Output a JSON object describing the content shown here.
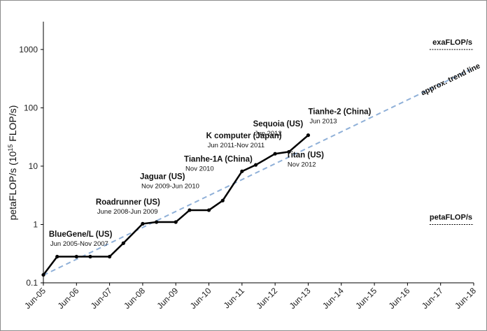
{
  "chart_data": {
    "type": "line",
    "title": "",
    "xlabel": "",
    "ylabel": "petaFLOP/s (10<sup>15</sup> FLOP/s)",
    "ylabel_parts": [
      "petaFLOP/s (10",
      "15",
      " FLOP/s)"
    ],
    "y_scale": "log",
    "ylim": [
      0.1,
      3000
    ],
    "y_ticks": [
      0.1,
      1,
      10,
      100,
      1000
    ],
    "y_tick_labels": [
      "0.1",
      "1",
      "10",
      "100",
      "1000"
    ],
    "x_ticks": [
      "2005-06",
      "2006-06",
      "2007-06",
      "2008-06",
      "2009-06",
      "2010-06",
      "2011-06",
      "2012-06",
      "2013-06",
      "2014-06",
      "2015-06",
      "2016-06",
      "2017-06",
      "2018-06"
    ],
    "x_tick_labels": [
      "Jun-05",
      "Jun-06",
      "Jun-07",
      "Jun-08",
      "Jun-09",
      "Jun-10",
      "Jun-11",
      "Jun-12",
      "Jun-13",
      "Jun-14",
      "Jun-15",
      "Jun-16",
      "Jun-17",
      "Jun-18"
    ],
    "xlim": [
      "2005-06",
      "2018-06"
    ],
    "grid": false,
    "series": [
      {
        "name": "",
        "color": "#000000",
        "points": [
          {
            "x": "2005-06",
            "y": 0.137
          },
          {
            "x": "2005-11",
            "y": 0.281
          },
          {
            "x": "2006-06",
            "y": 0.281
          },
          {
            "x": "2006-11",
            "y": 0.281
          },
          {
            "x": "2007-06",
            "y": 0.281
          },
          {
            "x": "2007-11",
            "y": 0.478
          },
          {
            "x": "2008-06",
            "y": 1.03
          },
          {
            "x": "2008-11",
            "y": 1.1
          },
          {
            "x": "2009-06",
            "y": 1.1
          },
          {
            "x": "2009-11",
            "y": 1.76
          },
          {
            "x": "2010-06",
            "y": 1.76
          },
          {
            "x": "2010-11",
            "y": 2.57
          },
          {
            "x": "2011-06",
            "y": 8.16
          },
          {
            "x": "2011-11",
            "y": 10.5
          },
          {
            "x": "2012-06",
            "y": 16.3
          },
          {
            "x": "2012-11",
            "y": 17.6
          },
          {
            "x": "2013-06",
            "y": 33.9
          }
        ]
      }
    ],
    "trend_line": {
      "label": "approx. trend line",
      "color": "#8fb0d8",
      "from": {
        "x": "2005-06",
        "y": 0.135
      },
      "to": {
        "x": "2018-06",
        "y": 480
      }
    },
    "reference_lines": [
      {
        "label": "exaFLOP/s",
        "y": 1000,
        "x_from": "2017-02",
        "x_to": "2018-06"
      },
      {
        "label": "petaFLOP/s",
        "y": 1,
        "x_from": "2017-02",
        "x_to": "2018-06"
      }
    ],
    "annotations": [
      {
        "title": "BlueGene/L (US)",
        "subtitle": "Jun 2005-Nov 2007",
        "x": "2005-08",
        "y": 0.62
      },
      {
        "title": "Roadrunner (US)",
        "subtitle": "June 2008-Jun 2009",
        "x": "2007-01",
        "y": 2.2
      },
      {
        "title": "Jaguar (US)",
        "subtitle": "Nov 2009-Jun 2010",
        "x": "2008-05",
        "y": 6.0
      },
      {
        "title": "Tianhe-1A (China)",
        "subtitle": "Nov 2010",
        "x": "2009-09",
        "y": 12.0
      },
      {
        "title": "K computer (Japan)",
        "subtitle": "Jun 2011-Nov 2011",
        "x": "2010-05",
        "y": 30.0
      },
      {
        "title": "Sequoia (US)",
        "subtitle": "Jun 2012",
        "x": "2011-10",
        "y": 48.0
      },
      {
        "title": "Tianhe-2 (China)",
        "subtitle": "Jun 2013",
        "x": "2013-06",
        "y": 78.0
      },
      {
        "title": "Titan (US)",
        "subtitle": "Nov 2012",
        "x": "2012-10",
        "y": 14.0
      }
    ]
  }
}
